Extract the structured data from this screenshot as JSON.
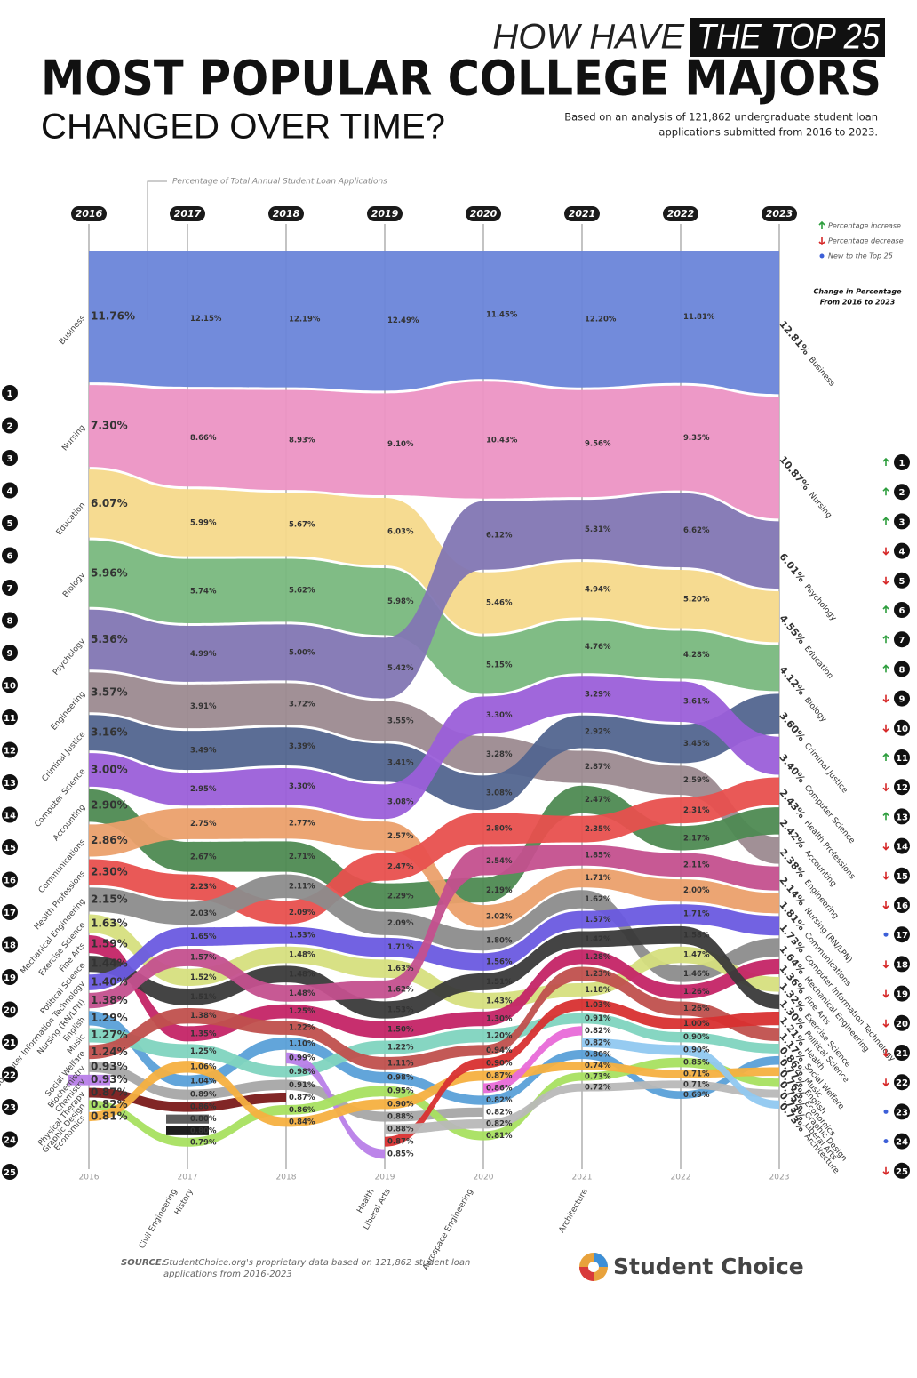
{
  "chart_data": {
    "type": "bump",
    "kicker": "HOW HAVE",
    "kicker_highlight": "THE TOP 25",
    "title": "MOST POPULAR COLLEGE MAJORS",
    "title_line2": "CHANGED OVER TIME?",
    "subtitle": [
      "Based on an analysis of 121,862 undergraduate student loan",
      "applications submitted from 2016 to 2023."
    ],
    "annotation": "Percentage of Total Annual Student Loan Applications",
    "legend": [
      {
        "label": "Percentage increase",
        "color": "#2e9e3e",
        "symbol": "increase"
      },
      {
        "label": "Percentage decrease",
        "color": "#d62828",
        "symbol": "decrease"
      },
      {
        "label": "New to the Top 25",
        "color": "#3c5fd8",
        "symbol": "new"
      }
    ],
    "change_heading": [
      "Change in Percentage",
      "From 2016 to 2023"
    ],
    "ranks": [
      1,
      2,
      3,
      4,
      5,
      6,
      7,
      8,
      9,
      10,
      11,
      12,
      13,
      14,
      15,
      16,
      17,
      18,
      19,
      20,
      21,
      22,
      23,
      24,
      25
    ],
    "rank_changes": [
      "increase",
      "increase",
      "increase",
      "decrease",
      "decrease",
      "increase",
      "increase",
      "increase",
      "decrease",
      "decrease",
      "increase",
      "decrease",
      "increase",
      "decrease",
      "decrease",
      "decrease",
      "new",
      "decrease",
      "decrease",
      "decrease",
      "decrease",
      "decrease",
      "new",
      "new",
      "decrease"
    ],
    "x": [
      2016,
      2017,
      2018,
      2019,
      2020,
      2021,
      2022,
      2023
    ],
    "series": [
      {
        "name": "Business",
        "color": "#6a85d9",
        "values": [
          11.76,
          12.15,
          12.19,
          12.49,
          11.45,
          12.2,
          11.81,
          12.81
        ],
        "value_labels": [
          "11.76%",
          "12.15%",
          "12.19%",
          "12.49%",
          "11.45%",
          "12.20%",
          "11.81%",
          "12.81%"
        ]
      },
      {
        "name": "Nursing",
        "color": "#ec93c4",
        "values": [
          7.3,
          8.66,
          8.93,
          9.1,
          10.43,
          9.56,
          9.35,
          10.87
        ],
        "value_labels": [
          "7.30%",
          "8.66%",
          "8.93%",
          "9.10%",
          "10.43%",
          "9.56%",
          "9.35%",
          "10.87%"
        ]
      },
      {
        "name": "Education",
        "color": "#f5d98b",
        "values": [
          6.07,
          5.99,
          5.67,
          6.03,
          5.46,
          4.94,
          5.2,
          4.55
        ],
        "value_labels": [
          "6.07%",
          "5.99%",
          "5.67%",
          "6.03%",
          "5.46%",
          "4.94%",
          "5.20%",
          "4.55%"
        ]
      },
      {
        "name": "Biology",
        "color": "#79b87e",
        "values": [
          5.96,
          5.74,
          5.62,
          5.98,
          5.15,
          4.76,
          4.28,
          4.12
        ],
        "value_labels": [
          "5.96%",
          "5.74%",
          "5.62%",
          "5.98%",
          "5.15%",
          "4.76%",
          "4.28%",
          "4.12%"
        ]
      },
      {
        "name": "Psychology",
        "color": "#8276b3",
        "values": [
          5.36,
          4.99,
          5.0,
          5.42,
          6.12,
          5.31,
          6.62,
          6.01
        ],
        "value_labels": [
          "5.36%",
          "4.99%",
          "5.00%",
          "5.42%",
          "6.12%",
          "5.31%",
          "6.62%",
          "6.01%"
        ]
      },
      {
        "name": "Engineering",
        "color": "#9c8a90",
        "values": [
          3.57,
          3.91,
          3.72,
          3.55,
          3.28,
          2.87,
          2.59,
          2.38
        ],
        "value_labels": [
          "3.57%",
          "3.91%",
          "3.72%",
          "3.55%",
          "3.28%",
          "2.87%",
          "2.59%",
          "2.38%"
        ]
      },
      {
        "name": "Criminal Justice",
        "color": "#52658f",
        "values": [
          3.16,
          3.49,
          3.39,
          3.41,
          3.08,
          2.92,
          3.45,
          3.6
        ],
        "value_labels": [
          "3.16%",
          "3.49%",
          "3.39%",
          "3.41%",
          "3.08%",
          "2.92%",
          "3.45%",
          "3.60%"
        ]
      },
      {
        "name": "Computer Science",
        "color": "#9b5fd9",
        "values": [
          3.0,
          2.95,
          3.3,
          3.08,
          3.3,
          3.29,
          3.61,
          3.4
        ],
        "value_labels": [
          "3.00%",
          "2.95%",
          "3.30%",
          "3.08%",
          "3.30%",
          "3.29%",
          "3.61%",
          "3.40%"
        ]
      },
      {
        "name": "Accounting",
        "color": "#4e8a52",
        "values": [
          2.9,
          2.67,
          2.71,
          2.29,
          2.19,
          2.47,
          2.17,
          2.42
        ],
        "value_labels": [
          "2.90%",
          "2.67%",
          "2.71%",
          "2.29%",
          "2.19%",
          "2.47%",
          "2.17%",
          "2.42%"
        ]
      },
      {
        "name": "Communications",
        "color": "#eba06c",
        "values": [
          2.86,
          2.75,
          2.77,
          2.57,
          2.02,
          1.71,
          2.0,
          1.81
        ],
        "value_labels": [
          "2.86%",
          "2.75%",
          "2.77%",
          "2.57%",
          "2.02%",
          "1.71%",
          "2.00%",
          "1.81%"
        ]
      },
      {
        "name": "Health Professions",
        "color": "#e8504e",
        "values": [
          2.3,
          2.23,
          2.09,
          2.47,
          2.8,
          2.35,
          2.31,
          2.43
        ],
        "value_labels": [
          "2.30%",
          "2.23%",
          "2.09%",
          "2.47%",
          "2.80%",
          "2.35%",
          "2.31%",
          "2.43%"
        ]
      },
      {
        "name": "Mechanical Engineering",
        "color": "#8c8c8c",
        "values": [
          2.15,
          2.03,
          2.11,
          2.09,
          1.8,
          1.62,
          1.46,
          1.64
        ],
        "value_labels": [
          "2.15%",
          "2.03%",
          "2.11%",
          "2.09%",
          "1.80%",
          "1.62%",
          "1.46%",
          "1.64%"
        ]
      },
      {
        "name": "Exercise Science",
        "color": "#d6df7e",
        "values": [
          1.63,
          1.52,
          1.48,
          1.63,
          1.43,
          1.18,
          1.47,
          1.32
        ],
        "value_labels": [
          "1.63%",
          "1.52%",
          "1.48%",
          "1.63%",
          "1.43%",
          "1.18%",
          "1.47%",
          "1.32%"
        ]
      },
      {
        "name": "Fine Arts",
        "color": "#c42466",
        "values": [
          1.59,
          1.35,
          1.25,
          1.5,
          1.3,
          1.28,
          1.26,
          1.36
        ],
        "value_labels": [
          "1.59%",
          "1.35%",
          "1.25%",
          "1.50%",
          "1.30%",
          "1.28%",
          "1.26%",
          "1.36%"
        ]
      },
      {
        "name": "Political Science",
        "color": "#3a3a3a",
        "values": [
          1.44,
          1.51,
          1.48,
          1.53,
          1.51,
          1.42,
          1.58,
          1.3
        ],
        "value_labels": [
          "1.44%",
          "1.51%",
          "1.48%",
          "1.53%",
          "1.51%",
          "1.42%",
          "1.58%",
          "1.30%"
        ]
      },
      {
        "name": "Computer Information Technology",
        "color": "#6a5ae0",
        "values": [
          1.4,
          1.65,
          1.53,
          1.71,
          1.56,
          1.57,
          1.71,
          1.73
        ],
        "value_labels": [
          "1.40%",
          "1.65%",
          "1.53%",
          "1.71%",
          "1.56%",
          "1.57%",
          "1.71%",
          "1.73%"
        ]
      },
      {
        "name": "Nursing (RN/LPN)",
        "color": "#c4508e",
        "values": [
          1.38,
          1.57,
          1.48,
          1.62,
          2.54,
          1.85,
          2.11,
          2.14
        ],
        "value_labels": [
          "1.38%",
          "1.57%",
          "1.48%",
          "1.62%",
          "2.54%",
          "1.85%",
          "2.11%",
          "2.14%"
        ]
      },
      {
        "name": "English",
        "color": "#5aa0d8",
        "values": [
          1.29,
          1.04,
          1.1,
          0.98,
          0.82,
          0.8,
          0.69,
          0.77
        ],
        "value_labels": [
          "1.29%",
          "1.04%",
          "1.10%",
          "0.98%",
          "0.82%",
          "0.80%",
          "0.69%",
          "0.77%"
        ]
      },
      {
        "name": "Music",
        "color": "#7fd4bf",
        "values": [
          1.27,
          1.25,
          0.98,
          1.22,
          1.2,
          0.91,
          0.9,
          0.86
        ],
        "value_labels": [
          "1.27%",
          "1.25%",
          "0.98%",
          "1.22%",
          "1.20%",
          "0.91%",
          "0.90%",
          "0.86%"
        ]
      },
      {
        "name": "Social Welfare",
        "color": "#c0504d",
        "values": [
          1.24,
          1.38,
          1.22,
          1.11,
          0.94,
          1.23,
          1.26,
          1.17
        ],
        "value_labels": [
          "1.24%",
          "1.38%",
          "1.22%",
          "1.11%",
          "0.94%",
          "1.23%",
          "1.26%",
          "1.17%"
        ]
      },
      {
        "name": "Biochemistry",
        "color": "#a6a6a6",
        "values": [
          0.93,
          0.89,
          0.91,
          0.88,
          0.82,
          null,
          null,
          null
        ],
        "value_labels": [
          "0.93%",
          "0.89%",
          "0.91%",
          "0.88%",
          "0.82%",
          null,
          null,
          null
        ]
      },
      {
        "name": "Chemistry",
        "color": "#b87ee8",
        "values": [
          0.93,
          null,
          0.99,
          0.85,
          null,
          null,
          null,
          null
        ],
        "value_labels": [
          "0.93%",
          null,
          "0.99%",
          "0.85%",
          null,
          null,
          null,
          null
        ]
      },
      {
        "name": "Physical Therapy",
        "color": "#7a1a1a",
        "values": [
          0.87,
          0.86,
          0.87,
          null,
          null,
          null,
          null,
          null
        ],
        "value_labels": [
          "0.87%",
          "0.86%",
          "0.87%",
          null,
          null,
          null,
          null,
          null
        ]
      },
      {
        "name": "Graphic Design",
        "color": "#a8e060",
        "values": [
          0.82,
          0.79,
          0.86,
          0.95,
          0.81,
          0.73,
          0.85,
          0.75
        ],
        "value_labels": [
          "0.82%",
          "0.79%",
          "0.86%",
          "0.95%",
          "0.81%",
          "0.73%",
          "0.85%",
          "0.75%"
        ]
      },
      {
        "name": "Economics",
        "color": "#f5b040",
        "values": [
          0.81,
          1.06,
          0.84,
          0.9,
          0.87,
          0.74,
          0.71,
          0.76
        ],
        "value_labels": [
          "0.81%",
          "1.06%",
          "0.84%",
          "0.90%",
          "0.87%",
          "0.74%",
          "0.71%",
          "0.76%"
        ]
      },
      {
        "name": "Civil Engineering",
        "color": "#555555",
        "values": [
          null,
          0.8,
          null,
          null,
          null,
          null,
          null,
          null
        ],
        "value_labels": [
          null,
          "0.80%",
          null,
          null,
          null,
          null,
          null,
          null
        ]
      },
      {
        "name": "History",
        "color": "#111111",
        "values": [
          null,
          0.8,
          null,
          null,
          null,
          null,
          null,
          null
        ],
        "value_labels": [
          null,
          "0.80%",
          null,
          null,
          null,
          null,
          null,
          null
        ]
      },
      {
        "name": "Health",
        "color": "#d83030",
        "values": [
          null,
          null,
          null,
          0.87,
          0.9,
          1.03,
          1.0,
          1.21
        ],
        "value_labels": [
          null,
          null,
          null,
          "0.87%",
          "0.90%",
          "1.03%",
          "1.00%",
          "1.21%"
        ]
      },
      {
        "name": "Liberal Arts",
        "color": "#b8b8b8",
        "values": [
          null,
          null,
          null,
          0.88,
          0.82,
          0.72,
          0.71,
          0.73
        ],
        "value_labels": [
          null,
          null,
          null,
          "0.88%",
          "0.82%",
          "0.72%",
          "0.71%",
          "0.73%"
        ]
      },
      {
        "name": "Aerospace Engineering",
        "color": "#e86ad8",
        "values": [
          null,
          null,
          null,
          null,
          0.86,
          0.82,
          null,
          null
        ],
        "value_labels": [
          null,
          null,
          null,
          null,
          "0.86%",
          "0.82%",
          null,
          null
        ]
      },
      {
        "name": "Architecture",
        "color": "#90c8f0",
        "values": [
          null,
          null,
          null,
          null,
          null,
          0.82,
          0.9,
          0.73
        ],
        "value_labels": [
          null,
          null,
          null,
          null,
          null,
          "0.82%",
          "0.90%",
          "0.73%"
        ]
      }
    ],
    "source_label": "SOURCE:",
    "source": [
      "StudentChoice.org's proprietary data based on 121,862 student loan",
      "applications from 2016-2023"
    ],
    "brand": "Student Choice"
  }
}
